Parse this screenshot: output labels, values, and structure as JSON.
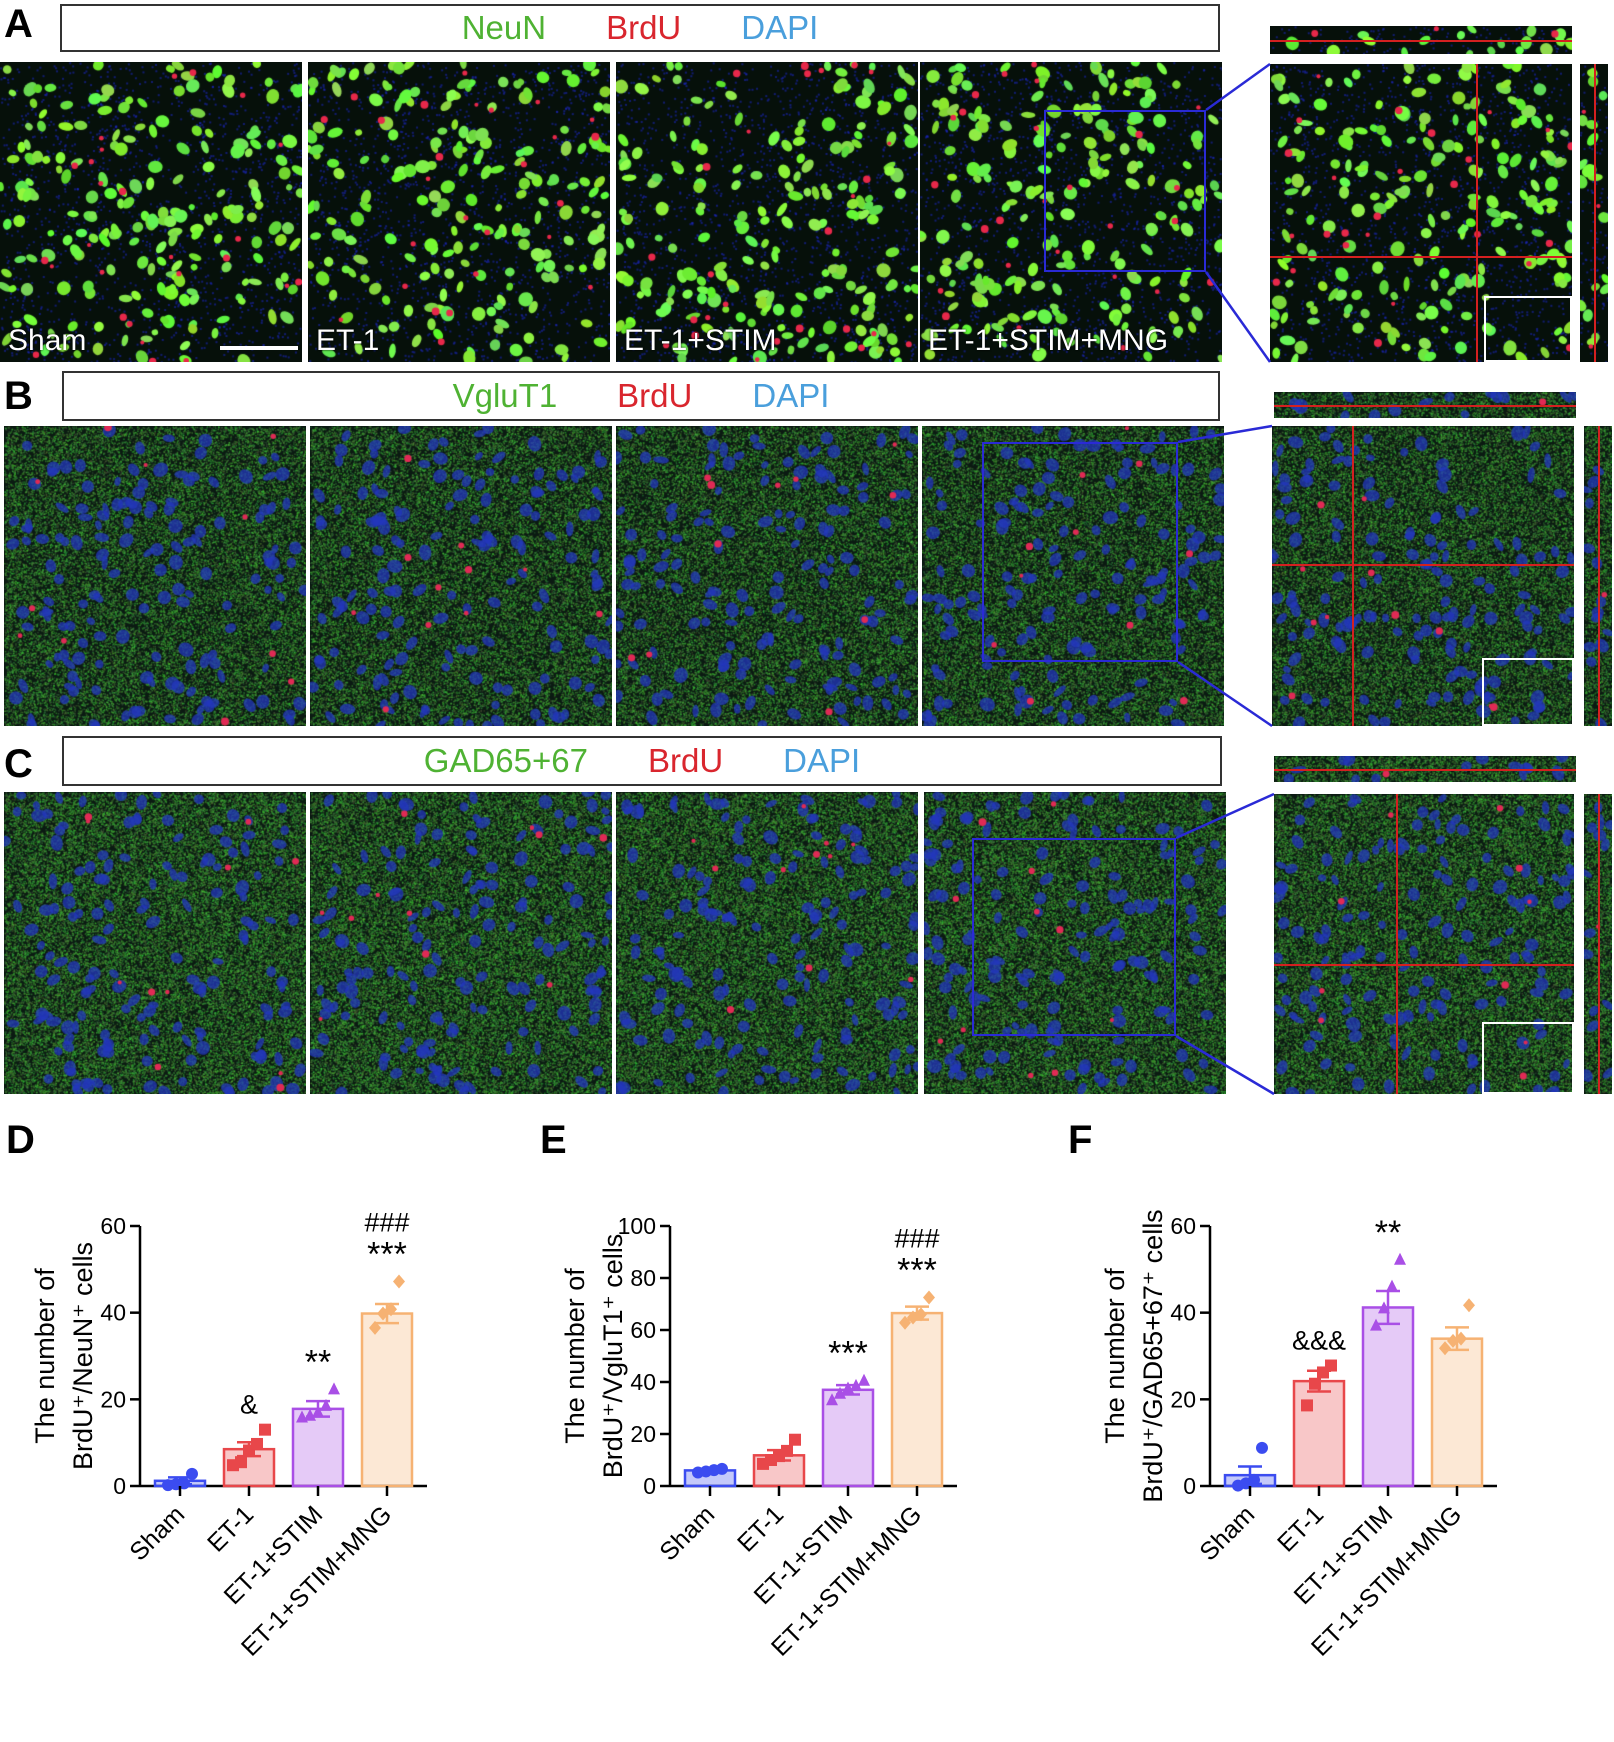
{
  "figure": {
    "panel_labels": [
      "A",
      "B",
      "C",
      "D",
      "E",
      "F"
    ],
    "rows": [
      {
        "label": "A",
        "marker": "NeuN",
        "counter1": "BrdU",
        "counter2": "DAPI",
        "style": "neun"
      },
      {
        "label": "B",
        "marker": "VgluT1",
        "counter1": "BrdU",
        "counter2": "DAPI",
        "style": "vglut"
      },
      {
        "label": "C",
        "marker": "GAD65+67",
        "counter1": "BrdU",
        "counter2": "DAPI",
        "style": "gad"
      }
    ],
    "conditions": [
      "Sham",
      "ET-1",
      "ET-1+STIM",
      "ET-1+STIM+MNG"
    ],
    "colors": {
      "marker": "#4fb233",
      "brdu": "#d9262e",
      "dapi": "#4a9fdc",
      "zoom_box": "#2a2ad6",
      "crosshair": "#d42020",
      "sham": "#3b4cf0",
      "et1": "#e8474a",
      "stim": "#a94fe6",
      "mng": "#f6b273"
    }
  },
  "chart_data": [
    {
      "type": "bar",
      "panel": "D",
      "ylabel_line1": "The number of",
      "ylabel_line2": "BrdU⁺/NeuN⁺ cells",
      "categories": [
        "Sham",
        "ET-1",
        "ET-1+STIM",
        "ET-1+STIM+MNG"
      ],
      "values": [
        1.2,
        8.5,
        17.8,
        39.8
      ],
      "sem": [
        0.8,
        1.6,
        1.8,
        2.2
      ],
      "points": [
        [
          0.2,
          0.4,
          0.6,
          2.8
        ],
        [
          4.8,
          5.5,
          8.2,
          9.7,
          13.0
        ],
        [
          15.8,
          16.2,
          17.0,
          18.5,
          22.3
        ],
        [
          36.5,
          39.8,
          40.8,
          47.2
        ]
      ],
      "markers": [
        "circle",
        "square",
        "triangle",
        "diamond"
      ],
      "ylim": [
        0,
        60
      ],
      "yticks": [
        0,
        20,
        40,
        60
      ],
      "annotations": [
        [
          "&"
        ],
        [
          "**"
        ],
        [
          "###",
          "***"
        ]
      ],
      "annotation_idx": [
        1,
        2,
        3
      ]
    },
    {
      "type": "bar",
      "panel": "E",
      "ylabel_line1": "The number of",
      "ylabel_line2": "BrdU⁺/VgluT1⁺ cells",
      "categories": [
        "Sham",
        "ET-1",
        "ET-1+STIM",
        "ET-1+STIM+MNG"
      ],
      "values": [
        6.0,
        11.8,
        37.0,
        66.5
      ],
      "sem": [
        0.5,
        2.0,
        1.8,
        2.5
      ],
      "points": [
        [
          5.2,
          5.6,
          6.1,
          6.6
        ],
        [
          8.5,
          10.0,
          11.5,
          13.5,
          17.8
        ],
        [
          33.0,
          35.5,
          37.5,
          38.5,
          40.5
        ],
        [
          62.8,
          64.8,
          66.0,
          72.5
        ]
      ],
      "markers": [
        "circle",
        "square",
        "triangle",
        "diamond"
      ],
      "ylim": [
        0,
        100
      ],
      "yticks": [
        0,
        20,
        40,
        60,
        80,
        100
      ],
      "annotations": [
        [
          "***"
        ],
        [
          "###",
          "***"
        ]
      ],
      "annotation_idx": [
        2,
        3
      ]
    },
    {
      "type": "bar",
      "panel": "F",
      "ylabel_line1": "The number of",
      "ylabel_line2": "BrdU⁺/GAD65+67⁺ cells",
      "categories": [
        "Sham",
        "ET-1",
        "ET-1+STIM",
        "ET-1+STIM+MNG"
      ],
      "values": [
        2.5,
        24.2,
        41.2,
        34.0
      ],
      "sem": [
        2.0,
        2.4,
        3.8,
        2.6
      ],
      "points": [
        [
          0.1,
          0.6,
          1.4,
          8.8
        ],
        [
          18.6,
          23.6,
          26.2,
          27.8
        ],
        [
          37.0,
          41.0,
          46.0,
          52.2
        ],
        [
          31.8,
          33.5,
          34.0,
          41.7
        ]
      ],
      "markers": [
        "circle",
        "square",
        "triangle",
        "diamond"
      ],
      "ylim": [
        0,
        60
      ],
      "yticks": [
        0,
        20,
        40,
        60
      ],
      "annotations": [
        [
          "&&&"
        ],
        [
          "**"
        ]
      ],
      "annotation_idx": [
        1,
        2
      ]
    }
  ]
}
